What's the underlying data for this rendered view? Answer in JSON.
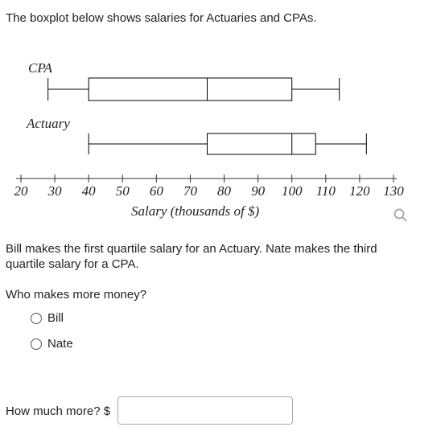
{
  "intro": "The boxplot below shows salaries for Actuaries and CPAs.",
  "chart_data": {
    "type": "boxplot",
    "orientation": "horizontal",
    "x_label": "Salary (thousands of $)",
    "xlim": [
      20,
      130
    ],
    "xticks": [
      20,
      30,
      40,
      50,
      60,
      70,
      80,
      90,
      100,
      110,
      120,
      130
    ],
    "series": [
      {
        "name": "CPA",
        "color": "#000000",
        "min": 28,
        "q1": 40,
        "median": 75,
        "q3": 100,
        "max": 114
      },
      {
        "name": "Actuary",
        "color": "#000000",
        "min": 40,
        "q1": 75,
        "median": 100,
        "q3": 107,
        "max": 122
      }
    ]
  },
  "question": "Bill makes the first quartile salary for an Actuary. Nate makes the third quartile salary for a CPA.",
  "prompt": "Who makes more money?",
  "options": [
    "Bill",
    "Nate"
  ],
  "answer_label": "How much more?",
  "currency": "$"
}
